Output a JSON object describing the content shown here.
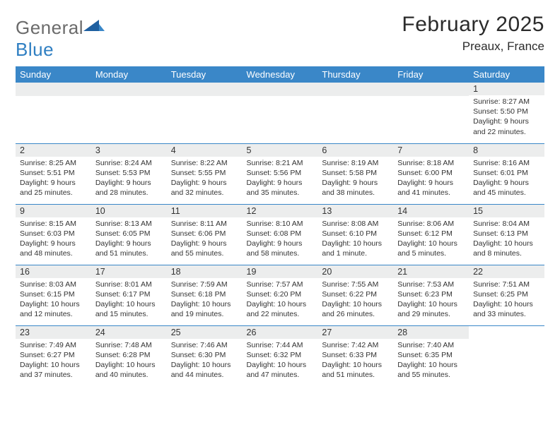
{
  "brand": {
    "part1": "General",
    "part2": "Blue"
  },
  "title": "February 2025",
  "location": "Preaux, France",
  "header_bg": "#3a87c8",
  "header_fg": "#ffffff",
  "rule_color": "#3a87c8",
  "daynum_bg": "#eceded",
  "text_color": "#333333",
  "weekdays": [
    "Sunday",
    "Monday",
    "Tuesday",
    "Wednesday",
    "Thursday",
    "Friday",
    "Saturday"
  ],
  "weeks": [
    [
      null,
      null,
      null,
      null,
      null,
      null,
      {
        "n": "1",
        "sr": "Sunrise: 8:27 AM",
        "ss": "Sunset: 5:50 PM",
        "d1": "Daylight: 9 hours",
        "d2": "and 22 minutes."
      }
    ],
    [
      {
        "n": "2",
        "sr": "Sunrise: 8:25 AM",
        "ss": "Sunset: 5:51 PM",
        "d1": "Daylight: 9 hours",
        "d2": "and 25 minutes."
      },
      {
        "n": "3",
        "sr": "Sunrise: 8:24 AM",
        "ss": "Sunset: 5:53 PM",
        "d1": "Daylight: 9 hours",
        "d2": "and 28 minutes."
      },
      {
        "n": "4",
        "sr": "Sunrise: 8:22 AM",
        "ss": "Sunset: 5:55 PM",
        "d1": "Daylight: 9 hours",
        "d2": "and 32 minutes."
      },
      {
        "n": "5",
        "sr": "Sunrise: 8:21 AM",
        "ss": "Sunset: 5:56 PM",
        "d1": "Daylight: 9 hours",
        "d2": "and 35 minutes."
      },
      {
        "n": "6",
        "sr": "Sunrise: 8:19 AM",
        "ss": "Sunset: 5:58 PM",
        "d1": "Daylight: 9 hours",
        "d2": "and 38 minutes."
      },
      {
        "n": "7",
        "sr": "Sunrise: 8:18 AM",
        "ss": "Sunset: 6:00 PM",
        "d1": "Daylight: 9 hours",
        "d2": "and 41 minutes."
      },
      {
        "n": "8",
        "sr": "Sunrise: 8:16 AM",
        "ss": "Sunset: 6:01 PM",
        "d1": "Daylight: 9 hours",
        "d2": "and 45 minutes."
      }
    ],
    [
      {
        "n": "9",
        "sr": "Sunrise: 8:15 AM",
        "ss": "Sunset: 6:03 PM",
        "d1": "Daylight: 9 hours",
        "d2": "and 48 minutes."
      },
      {
        "n": "10",
        "sr": "Sunrise: 8:13 AM",
        "ss": "Sunset: 6:05 PM",
        "d1": "Daylight: 9 hours",
        "d2": "and 51 minutes."
      },
      {
        "n": "11",
        "sr": "Sunrise: 8:11 AM",
        "ss": "Sunset: 6:06 PM",
        "d1": "Daylight: 9 hours",
        "d2": "and 55 minutes."
      },
      {
        "n": "12",
        "sr": "Sunrise: 8:10 AM",
        "ss": "Sunset: 6:08 PM",
        "d1": "Daylight: 9 hours",
        "d2": "and 58 minutes."
      },
      {
        "n": "13",
        "sr": "Sunrise: 8:08 AM",
        "ss": "Sunset: 6:10 PM",
        "d1": "Daylight: 10 hours",
        "d2": "and 1 minute."
      },
      {
        "n": "14",
        "sr": "Sunrise: 8:06 AM",
        "ss": "Sunset: 6:12 PM",
        "d1": "Daylight: 10 hours",
        "d2": "and 5 minutes."
      },
      {
        "n": "15",
        "sr": "Sunrise: 8:04 AM",
        "ss": "Sunset: 6:13 PM",
        "d1": "Daylight: 10 hours",
        "d2": "and 8 minutes."
      }
    ],
    [
      {
        "n": "16",
        "sr": "Sunrise: 8:03 AM",
        "ss": "Sunset: 6:15 PM",
        "d1": "Daylight: 10 hours",
        "d2": "and 12 minutes."
      },
      {
        "n": "17",
        "sr": "Sunrise: 8:01 AM",
        "ss": "Sunset: 6:17 PM",
        "d1": "Daylight: 10 hours",
        "d2": "and 15 minutes."
      },
      {
        "n": "18",
        "sr": "Sunrise: 7:59 AM",
        "ss": "Sunset: 6:18 PM",
        "d1": "Daylight: 10 hours",
        "d2": "and 19 minutes."
      },
      {
        "n": "19",
        "sr": "Sunrise: 7:57 AM",
        "ss": "Sunset: 6:20 PM",
        "d1": "Daylight: 10 hours",
        "d2": "and 22 minutes."
      },
      {
        "n": "20",
        "sr": "Sunrise: 7:55 AM",
        "ss": "Sunset: 6:22 PM",
        "d1": "Daylight: 10 hours",
        "d2": "and 26 minutes."
      },
      {
        "n": "21",
        "sr": "Sunrise: 7:53 AM",
        "ss": "Sunset: 6:23 PM",
        "d1": "Daylight: 10 hours",
        "d2": "and 29 minutes."
      },
      {
        "n": "22",
        "sr": "Sunrise: 7:51 AM",
        "ss": "Sunset: 6:25 PM",
        "d1": "Daylight: 10 hours",
        "d2": "and 33 minutes."
      }
    ],
    [
      {
        "n": "23",
        "sr": "Sunrise: 7:49 AM",
        "ss": "Sunset: 6:27 PM",
        "d1": "Daylight: 10 hours",
        "d2": "and 37 minutes."
      },
      {
        "n": "24",
        "sr": "Sunrise: 7:48 AM",
        "ss": "Sunset: 6:28 PM",
        "d1": "Daylight: 10 hours",
        "d2": "and 40 minutes."
      },
      {
        "n": "25",
        "sr": "Sunrise: 7:46 AM",
        "ss": "Sunset: 6:30 PM",
        "d1": "Daylight: 10 hours",
        "d2": "and 44 minutes."
      },
      {
        "n": "26",
        "sr": "Sunrise: 7:44 AM",
        "ss": "Sunset: 6:32 PM",
        "d1": "Daylight: 10 hours",
        "d2": "and 47 minutes."
      },
      {
        "n": "27",
        "sr": "Sunrise: 7:42 AM",
        "ss": "Sunset: 6:33 PM",
        "d1": "Daylight: 10 hours",
        "d2": "and 51 minutes."
      },
      {
        "n": "28",
        "sr": "Sunrise: 7:40 AM",
        "ss": "Sunset: 6:35 PM",
        "d1": "Daylight: 10 hours",
        "d2": "and 55 minutes."
      },
      null
    ]
  ]
}
